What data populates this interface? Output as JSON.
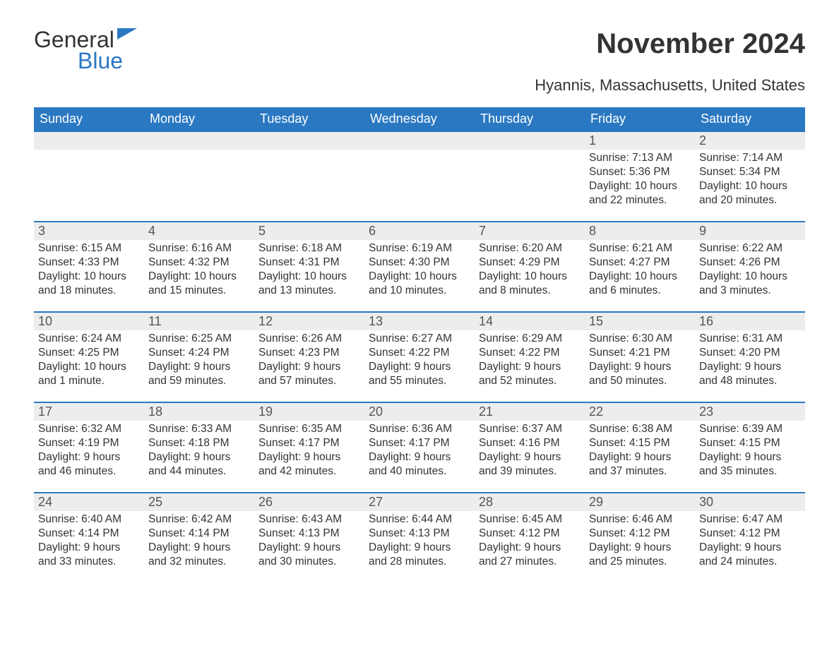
{
  "logo": {
    "text1": "General",
    "text2": "Blue"
  },
  "title": "November 2024",
  "subtitle": "Hyannis, Massachusetts, United States",
  "colors": {
    "header_bg": "#2a78c2",
    "header_fg": "#ffffff",
    "daynum_bg": "#ededed",
    "rule": "#2a78c2",
    "text": "#333333"
  },
  "weekdays": [
    "Sunday",
    "Monday",
    "Tuesday",
    "Wednesday",
    "Thursday",
    "Friday",
    "Saturday"
  ],
  "weeks": [
    [
      null,
      null,
      null,
      null,
      null,
      {
        "n": "1",
        "sunrise": "Sunrise: 7:13 AM",
        "sunset": "Sunset: 5:36 PM",
        "daylight": "Daylight: 10 hours and 22 minutes."
      },
      {
        "n": "2",
        "sunrise": "Sunrise: 7:14 AM",
        "sunset": "Sunset: 5:34 PM",
        "daylight": "Daylight: 10 hours and 20 minutes."
      }
    ],
    [
      {
        "n": "3",
        "sunrise": "Sunrise: 6:15 AM",
        "sunset": "Sunset: 4:33 PM",
        "daylight": "Daylight: 10 hours and 18 minutes."
      },
      {
        "n": "4",
        "sunrise": "Sunrise: 6:16 AM",
        "sunset": "Sunset: 4:32 PM",
        "daylight": "Daylight: 10 hours and 15 minutes."
      },
      {
        "n": "5",
        "sunrise": "Sunrise: 6:18 AM",
        "sunset": "Sunset: 4:31 PM",
        "daylight": "Daylight: 10 hours and 13 minutes."
      },
      {
        "n": "6",
        "sunrise": "Sunrise: 6:19 AM",
        "sunset": "Sunset: 4:30 PM",
        "daylight": "Daylight: 10 hours and 10 minutes."
      },
      {
        "n": "7",
        "sunrise": "Sunrise: 6:20 AM",
        "sunset": "Sunset: 4:29 PM",
        "daylight": "Daylight: 10 hours and 8 minutes."
      },
      {
        "n": "8",
        "sunrise": "Sunrise: 6:21 AM",
        "sunset": "Sunset: 4:27 PM",
        "daylight": "Daylight: 10 hours and 6 minutes."
      },
      {
        "n": "9",
        "sunrise": "Sunrise: 6:22 AM",
        "sunset": "Sunset: 4:26 PM",
        "daylight": "Daylight: 10 hours and 3 minutes."
      }
    ],
    [
      {
        "n": "10",
        "sunrise": "Sunrise: 6:24 AM",
        "sunset": "Sunset: 4:25 PM",
        "daylight": "Daylight: 10 hours and 1 minute."
      },
      {
        "n": "11",
        "sunrise": "Sunrise: 6:25 AM",
        "sunset": "Sunset: 4:24 PM",
        "daylight": "Daylight: 9 hours and 59 minutes."
      },
      {
        "n": "12",
        "sunrise": "Sunrise: 6:26 AM",
        "sunset": "Sunset: 4:23 PM",
        "daylight": "Daylight: 9 hours and 57 minutes."
      },
      {
        "n": "13",
        "sunrise": "Sunrise: 6:27 AM",
        "sunset": "Sunset: 4:22 PM",
        "daylight": "Daylight: 9 hours and 55 minutes."
      },
      {
        "n": "14",
        "sunrise": "Sunrise: 6:29 AM",
        "sunset": "Sunset: 4:22 PM",
        "daylight": "Daylight: 9 hours and 52 minutes."
      },
      {
        "n": "15",
        "sunrise": "Sunrise: 6:30 AM",
        "sunset": "Sunset: 4:21 PM",
        "daylight": "Daylight: 9 hours and 50 minutes."
      },
      {
        "n": "16",
        "sunrise": "Sunrise: 6:31 AM",
        "sunset": "Sunset: 4:20 PM",
        "daylight": "Daylight: 9 hours and 48 minutes."
      }
    ],
    [
      {
        "n": "17",
        "sunrise": "Sunrise: 6:32 AM",
        "sunset": "Sunset: 4:19 PM",
        "daylight": "Daylight: 9 hours and 46 minutes."
      },
      {
        "n": "18",
        "sunrise": "Sunrise: 6:33 AM",
        "sunset": "Sunset: 4:18 PM",
        "daylight": "Daylight: 9 hours and 44 minutes."
      },
      {
        "n": "19",
        "sunrise": "Sunrise: 6:35 AM",
        "sunset": "Sunset: 4:17 PM",
        "daylight": "Daylight: 9 hours and 42 minutes."
      },
      {
        "n": "20",
        "sunrise": "Sunrise: 6:36 AM",
        "sunset": "Sunset: 4:17 PM",
        "daylight": "Daylight: 9 hours and 40 minutes."
      },
      {
        "n": "21",
        "sunrise": "Sunrise: 6:37 AM",
        "sunset": "Sunset: 4:16 PM",
        "daylight": "Daylight: 9 hours and 39 minutes."
      },
      {
        "n": "22",
        "sunrise": "Sunrise: 6:38 AM",
        "sunset": "Sunset: 4:15 PM",
        "daylight": "Daylight: 9 hours and 37 minutes."
      },
      {
        "n": "23",
        "sunrise": "Sunrise: 6:39 AM",
        "sunset": "Sunset: 4:15 PM",
        "daylight": "Daylight: 9 hours and 35 minutes."
      }
    ],
    [
      {
        "n": "24",
        "sunrise": "Sunrise: 6:40 AM",
        "sunset": "Sunset: 4:14 PM",
        "daylight": "Daylight: 9 hours and 33 minutes."
      },
      {
        "n": "25",
        "sunrise": "Sunrise: 6:42 AM",
        "sunset": "Sunset: 4:14 PM",
        "daylight": "Daylight: 9 hours and 32 minutes."
      },
      {
        "n": "26",
        "sunrise": "Sunrise: 6:43 AM",
        "sunset": "Sunset: 4:13 PM",
        "daylight": "Daylight: 9 hours and 30 minutes."
      },
      {
        "n": "27",
        "sunrise": "Sunrise: 6:44 AM",
        "sunset": "Sunset: 4:13 PM",
        "daylight": "Daylight: 9 hours and 28 minutes."
      },
      {
        "n": "28",
        "sunrise": "Sunrise: 6:45 AM",
        "sunset": "Sunset: 4:12 PM",
        "daylight": "Daylight: 9 hours and 27 minutes."
      },
      {
        "n": "29",
        "sunrise": "Sunrise: 6:46 AM",
        "sunset": "Sunset: 4:12 PM",
        "daylight": "Daylight: 9 hours and 25 minutes."
      },
      {
        "n": "30",
        "sunrise": "Sunrise: 6:47 AM",
        "sunset": "Sunset: 4:12 PM",
        "daylight": "Daylight: 9 hours and 24 minutes."
      }
    ]
  ]
}
